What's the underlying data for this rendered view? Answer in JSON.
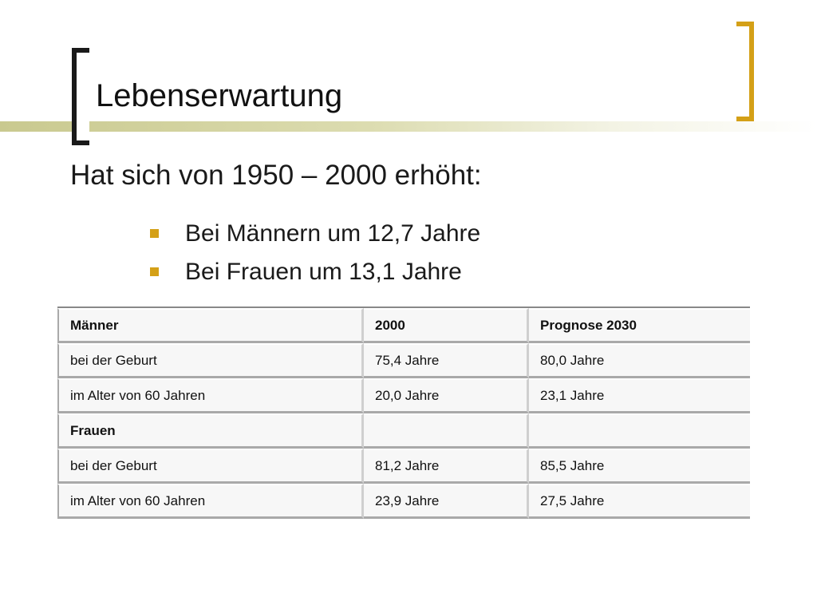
{
  "slide": {
    "title": "Lebenserwartung",
    "subtitle": "Hat sich von 1950 – 2000 erhöht:",
    "bullets": [
      "Bei Männern um 12,7 Jahre",
      "Bei Frauen um 13,1 Jahre"
    ]
  },
  "colors": {
    "accent": "#d4a017",
    "title_bar": "#c9c98f",
    "left_bracket": "#1a1a1a"
  },
  "table": {
    "rows": [
      {
        "cells": [
          "Männer",
          "2000",
          "Prognose 2030"
        ],
        "bold": true
      },
      {
        "cells": [
          "bei der Geburt",
          "75,4 Jahre",
          "80,0 Jahre"
        ],
        "bold": false
      },
      {
        "cells": [
          "im Alter von 60 Jahren",
          "20,0 Jahre",
          "23,1 Jahre"
        ],
        "bold": false
      },
      {
        "cells": [
          "Frauen",
          "",
          ""
        ],
        "bold": true
      },
      {
        "cells": [
          "bei der Geburt",
          "81,2 Jahre",
          "85,5 Jahre"
        ],
        "bold": false
      },
      {
        "cells": [
          "im Alter von 60 Jahren",
          "23,9 Jahre",
          "27,5 Jahre"
        ],
        "bold": false
      }
    ]
  }
}
